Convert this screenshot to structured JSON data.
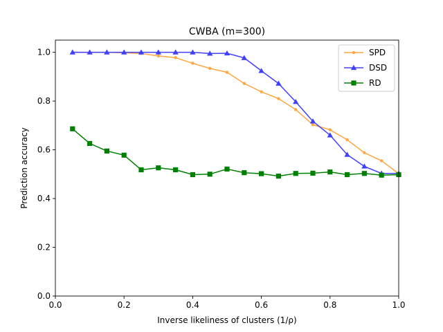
{
  "chart_data": {
    "type": "line",
    "title": "CWBA (m=300)",
    "xlabel": "Inverse likeliness of clusters (1/ρ)",
    "ylabel": "Prediction accuracy",
    "xlim": [
      0.0,
      1.0
    ],
    "ylim": [
      0.0,
      1.05
    ],
    "xticks": [
      0.0,
      0.2,
      0.4,
      0.6,
      0.8,
      1.0
    ],
    "xtick_labels": [
      "0.0",
      "0.2",
      "0.4",
      "0.6",
      "0.8",
      "1.0"
    ],
    "yticks": [
      0.0,
      0.2,
      0.4,
      0.6,
      0.8,
      1.0
    ],
    "ytick_labels": [
      "0.0",
      "0.2",
      "0.4",
      "0.6",
      "0.8",
      "1.0"
    ],
    "grid": false,
    "legend_position": "top-right",
    "x": [
      0.05,
      0.1,
      0.15,
      0.2,
      0.25,
      0.3,
      0.35,
      0.4,
      0.45,
      0.5,
      0.55,
      0.6,
      0.65,
      0.7,
      0.75,
      0.8,
      0.85,
      0.9,
      0.95,
      1.0
    ],
    "series": [
      {
        "name": "SPD",
        "color": "#ffa640",
        "marker": "dot",
        "values": [
          1.0,
          1.0,
          1.0,
          0.998,
          0.995,
          0.985,
          0.978,
          0.955,
          0.934,
          0.918,
          0.872,
          0.838,
          0.81,
          0.765,
          0.703,
          0.682,
          0.641,
          0.588,
          0.555,
          0.502
        ]
      },
      {
        "name": "DSD",
        "color": "#4040ff",
        "marker": "triangle",
        "values": [
          1.0,
          1.0,
          1.0,
          1.0,
          1.0,
          1.0,
          1.0,
          1.0,
          0.995,
          0.996,
          0.977,
          0.924,
          0.872,
          0.797,
          0.717,
          0.66,
          0.58,
          0.532,
          0.503,
          0.503
        ]
      },
      {
        "name": "RD",
        "color": "#008000",
        "marker": "square",
        "values": [
          0.686,
          0.626,
          0.595,
          0.578,
          0.518,
          0.526,
          0.518,
          0.498,
          0.5,
          0.521,
          0.506,
          0.502,
          0.492,
          0.503,
          0.504,
          0.509,
          0.498,
          0.503,
          0.496,
          0.498
        ]
      }
    ]
  }
}
